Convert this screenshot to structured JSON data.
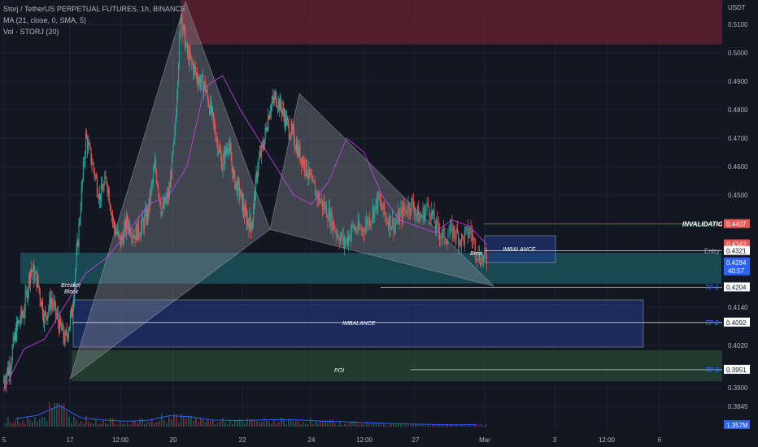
{
  "header": {
    "symbol_line": "Storj / TetherUS PERPETUAL FUTURES, 1h, BINANCE",
    "ma_line": "MA (21, close, 0, SMA, 5)",
    "vol_line": "Vol · STORJ (20)"
  },
  "colors": {
    "background": "#131722",
    "up": "#26a69a",
    "down": "#ef5350",
    "ma": "#e040fb",
    "volume_line": "#2962ff",
    "imbalance_fill": "#1e3a8a",
    "poi_fill": "#2e5a3a",
    "block_fill": "#1f6f7a",
    "supply_fill": "#6b2232"
  },
  "chart_data": {
    "type": "candlestick",
    "y_axis_unit": "USDT",
    "ylim": [
      0.3825,
      0.5165
    ],
    "y_ticks": [
      "0.5100",
      "0.5000",
      "0.4900",
      "0.4800",
      "0.4700",
      "0.4600",
      "0.4500",
      "0.4140",
      "0.4020",
      "0.3900",
      "0.3845"
    ],
    "x_ticks": [
      "5",
      "17",
      "12:00",
      "20",
      "22",
      "24",
      "12:00",
      "27",
      "Mar",
      "3",
      "12:00",
      "6"
    ],
    "price_path": [
      [
        0.3915,
        0.3965,
        0.4075,
        0.4125,
        0.4265,
        0.4225,
        0.4105,
        0.4165,
        0.4095,
        0.4035,
        0.4125,
        0.4395,
        0.4705,
        0.4605,
        0.4495,
        0.4555,
        0.4405,
        0.4345,
        0.4415,
        0.4375,
        0.4395,
        0.4445,
        0.4605,
        0.4445,
        0.4505
      ],
      [
        0.4505,
        0.4705,
        0.5145,
        0.5005,
        0.4955,
        0.4905,
        0.4885,
        0.4805,
        0.4705,
        0.4605,
        0.4685,
        0.4555,
        0.4505,
        0.4425,
        0.4405,
        0.4605,
        0.4685,
        0.4805,
        0.4845,
        0.4805,
        0.4745,
        0.4705,
        0.4645,
        0.4605,
        0.4545
      ],
      [
        0.4545,
        0.4485,
        0.4445,
        0.4385,
        0.4345,
        0.4395,
        0.4385,
        0.4425,
        0.4485,
        0.4425,
        0.4405,
        0.4445,
        0.4475,
        0.4425,
        0.4465,
        0.4395,
        0.4365,
        0.4385,
        0.4355,
        0.4385,
        0.4305,
        0.429
      ]
    ],
    "moving_average": [
      [
        0.389,
        0.401,
        0.404,
        0.415,
        0.425,
        0.43,
        0.438,
        0.447,
        0.45
      ],
      [
        0.45,
        0.46,
        0.488,
        0.492,
        0.48,
        0.47,
        0.46,
        0.45,
        0.447
      ],
      [
        0.447,
        0.455,
        0.47,
        0.465,
        0.45,
        0.442,
        0.44,
        0.438,
        0.442,
        0.44,
        0.434
      ]
    ],
    "volume": [
      0.36,
      0.52,
      0.95,
      0.4,
      0.3,
      0.25,
      0.28,
      0.5,
      0.45,
      0.3,
      0.28,
      0.3,
      0.32,
      0.3,
      0.25,
      0.22,
      0.18,
      0.15,
      0.12,
      0.1,
      0.08,
      0.1
    ],
    "last_volume": "1.357M",
    "levels": [
      {
        "name": "INVALIDATION",
        "price": 0.4407,
        "label": "INVALIDATION",
        "badge": "0.4407",
        "color": "#ef5350"
      },
      {
        "name": "close",
        "price": 0.4342,
        "badge": "0.4342",
        "color": "#ef5350"
      },
      {
        "name": "entry",
        "price": 0.4321,
        "label": "Entry",
        "badge": "0.4321",
        "color": "#787b86"
      },
      {
        "name": "last",
        "price": 0.4284,
        "badge": "0.4284",
        "countdown": "40:57",
        "color": "#2962ff"
      },
      {
        "name": "tp1",
        "price": 0.4204,
        "label": "TP 1",
        "badge": "0.4204",
        "color": "#2962ff"
      },
      {
        "name": "tp2",
        "price": 0.4092,
        "label": "TP 2",
        "badge": "0.4092",
        "color": "#2962ff"
      },
      {
        "name": "tp3",
        "price": 0.3951,
        "label": "TP 3",
        "badge": "0.3951",
        "color": "#2962ff"
      }
    ],
    "annotations": {
      "breaker_block": "Breaker\nBlock",
      "imbalance_small": "IMBALANCE",
      "imbalance_big": "IMBALANCE",
      "poi": "POI",
      "brea": "Brea"
    }
  }
}
